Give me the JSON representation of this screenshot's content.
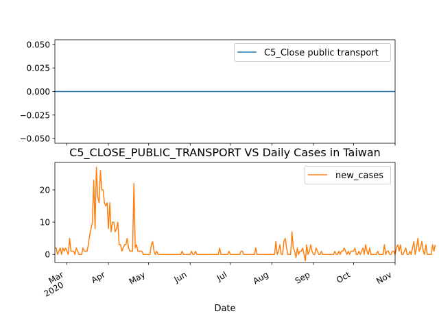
{
  "colors": {
    "series_top": "#1f77b4",
    "series_bottom": "#ff7f0e",
    "axes": "#000000",
    "legend_border": "#cccccc",
    "background": "#ffffff"
  },
  "chart_data": [
    {
      "type": "line",
      "title": "",
      "xlabel": "",
      "ylabel": "",
      "legend": "top-right",
      "grid": false,
      "ylim": [
        -0.055,
        0.055
      ],
      "yticks": [
        "0.050",
        "0.025",
        "0.000",
        "−0.025",
        "−0.050"
      ],
      "ytick_values": [
        0.05,
        0.025,
        0.0,
        -0.025,
        -0.05
      ],
      "x_range": [
        "2020-02-21",
        "2020-11-01"
      ],
      "series": [
        {
          "name": "C5_Close public transport",
          "x": [
            "2020-02-21",
            "2020-11-01"
          ],
          "values": [
            0,
            0
          ]
        }
      ]
    },
    {
      "type": "line",
      "title": "C5_CLOSE_PUBLIC_TRANSPORT VS Daily Cases in Taiwan",
      "xlabel": "Date",
      "ylabel": "",
      "legend": "top-right",
      "grid": false,
      "ylim": [
        -2.5,
        28.5
      ],
      "yticks": [
        "0",
        "10",
        "20"
      ],
      "ytick_values": [
        0,
        10,
        20
      ],
      "x_range": [
        "2020-02-21",
        "2020-11-01"
      ],
      "xticks": [
        {
          "date": "2020-03-01",
          "label": "Mar",
          "sublabel": "2020"
        },
        {
          "date": "2020-04-01",
          "label": "Apr",
          "sublabel": ""
        },
        {
          "date": "2020-05-01",
          "label": "May",
          "sublabel": ""
        },
        {
          "date": "2020-06-01",
          "label": "Jun",
          "sublabel": ""
        },
        {
          "date": "2020-07-01",
          "label": "Jul",
          "sublabel": ""
        },
        {
          "date": "2020-08-01",
          "label": "Aug",
          "sublabel": ""
        },
        {
          "date": "2020-09-01",
          "label": "Sep",
          "sublabel": ""
        },
        {
          "date": "2020-10-01",
          "label": "Oct",
          "sublabel": ""
        },
        {
          "date": "2020-11-01",
          "label": "Nov",
          "sublabel": ""
        }
      ],
      "series": [
        {
          "name": "new_cases",
          "start": "2020-02-21",
          "values": [
            2,
            2,
            0,
            1,
            2,
            0,
            2,
            1,
            2,
            1,
            0,
            5,
            1,
            1,
            1,
            0,
            2,
            1,
            0,
            0,
            0,
            2,
            1,
            1,
            1,
            3,
            6,
            8,
            10,
            23,
            8,
            27,
            18,
            16,
            26,
            20,
            20,
            16,
            15,
            16,
            8,
            16,
            7,
            10,
            10,
            7,
            8,
            10,
            3,
            3,
            1,
            2,
            3,
            3,
            5,
            2,
            1,
            1,
            1,
            22,
            2,
            3,
            1,
            1,
            1,
            1,
            0,
            0,
            0,
            0,
            0,
            0,
            3,
            4,
            1,
            0,
            1,
            0,
            0,
            0,
            0,
            0,
            0,
            0,
            0,
            0,
            0,
            0,
            0,
            0,
            0,
            0,
            0,
            0,
            0,
            1,
            0,
            0,
            0,
            0,
            0,
            0,
            1,
            0,
            0,
            1,
            0,
            0,
            0,
            0,
            0,
            0,
            0,
            0,
            0,
            0,
            0,
            0,
            0,
            0,
            0,
            0,
            0,
            2,
            0,
            0,
            0,
            0,
            0,
            0,
            1,
            0,
            0,
            0,
            0,
            0,
            0,
            0,
            0,
            1,
            1,
            0,
            0,
            0,
            0,
            0,
            0,
            0,
            0,
            0,
            2,
            0,
            0,
            0,
            0,
            0,
            0,
            0,
            0,
            0,
            0,
            0,
            0,
            0,
            0,
            4,
            0,
            1,
            3,
            0,
            0,
            4,
            5,
            2,
            0,
            0,
            0,
            7,
            2,
            1,
            -1,
            2,
            0,
            1,
            1,
            2,
            0,
            -2,
            3,
            0,
            1,
            3,
            1,
            0,
            0,
            2,
            1,
            0,
            0,
            1,
            0,
            0,
            0,
            0,
            0,
            0,
            0,
            0,
            0,
            1,
            0,
            0,
            1,
            0,
            1,
            1,
            2,
            1,
            0,
            1,
            0,
            1,
            1,
            1,
            2,
            0,
            0,
            1,
            0,
            1,
            2,
            0,
            3,
            1,
            0,
            2,
            0,
            0,
            0,
            0,
            0,
            1,
            0,
            0,
            0,
            0,
            3,
            0,
            1,
            1,
            0,
            0,
            1,
            1,
            0,
            2,
            3,
            1,
            3,
            0,
            0,
            1,
            2,
            0,
            0,
            1,
            0,
            2,
            4,
            0,
            2,
            5,
            1,
            2,
            4,
            1,
            0,
            3,
            0,
            0,
            0,
            0,
            3,
            1,
            3
          ]
        }
      ]
    }
  ]
}
